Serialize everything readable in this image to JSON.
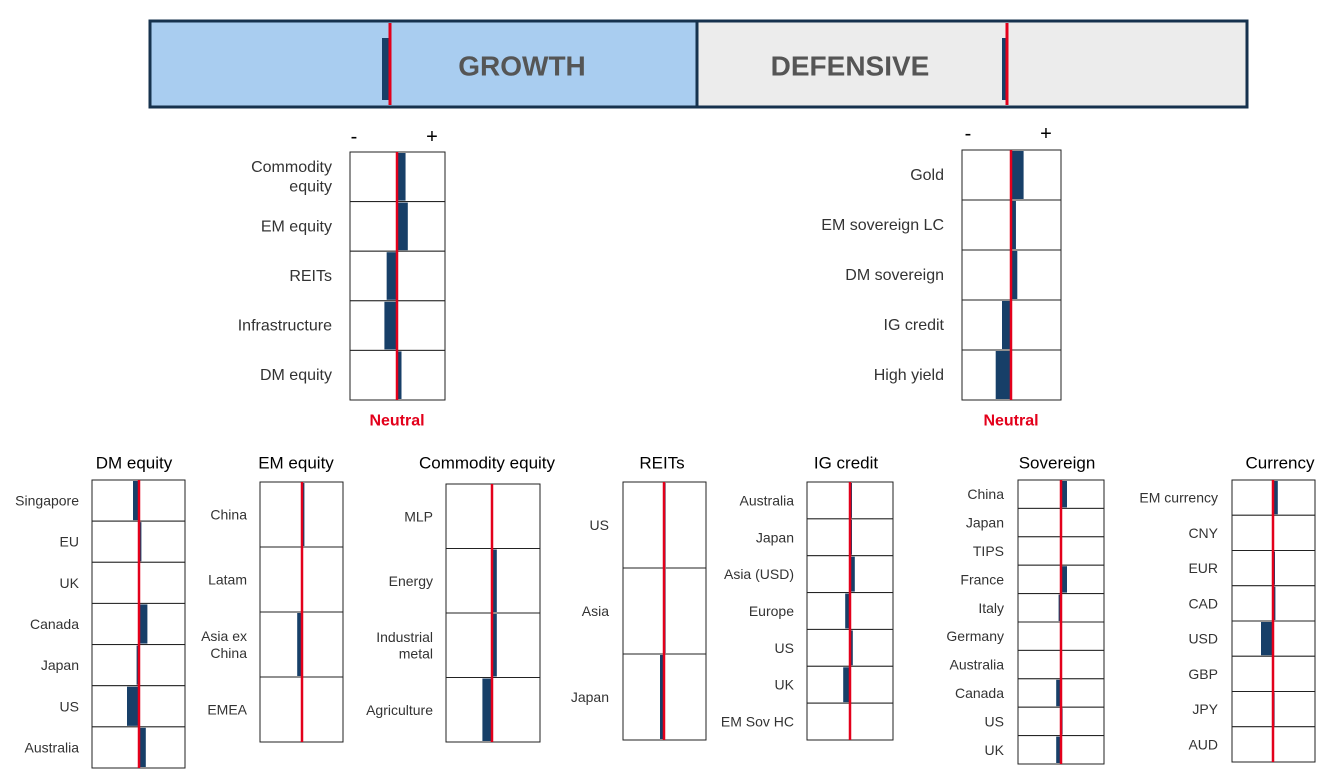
{
  "colors": {
    "growth_fill": "#a9cdf0",
    "defensive_fill": "#ececec",
    "border": "#16324e",
    "bar": "#173f68",
    "neutral_line": "#e3001b",
    "label_text": "#333333",
    "heading_text": "#000000",
    "neutral_text": "#e3001b",
    "header_text": "#555555"
  },
  "header": {
    "growth_label": "GROWTH",
    "defensive_label": "DEFENSIVE",
    "minus": "-",
    "plus": "+",
    "neutral_label": "Neutral"
  },
  "chart_data": [
    {
      "id": "regime",
      "type": "bar",
      "title": "",
      "categories": [
        "GROWTH",
        "DEFENSIVE"
      ],
      "values": [
        -0.08,
        -0.05
      ],
      "xlim": [
        -1,
        1
      ]
    },
    {
      "id": "growth",
      "type": "bar",
      "title": "",
      "categories": [
        "Commodity\nequity",
        "EM equity",
        "REITs",
        "Infrastructure",
        "DM equity"
      ],
      "values": [
        0.19,
        0.24,
        -0.23,
        -0.28,
        0.1
      ],
      "xlim": [
        -1,
        1
      ]
    },
    {
      "id": "defensive",
      "type": "bar",
      "title": "",
      "categories": [
        "Gold",
        "EM sovereign LC",
        "DM sovereign",
        "IG credit",
        "High yield"
      ],
      "values": [
        0.28,
        0.11,
        0.14,
        -0.2,
        -0.34
      ],
      "xlim": [
        -1,
        1
      ]
    },
    {
      "id": "dm_equity",
      "type": "bar",
      "title": "DM equity",
      "categories": [
        "Singapore",
        "EU",
        "UK",
        "Canada",
        "Japan",
        "US",
        "Australia"
      ],
      "values": [
        -0.15,
        0.06,
        0.0,
        0.21,
        -0.06,
        -0.3,
        0.17
      ],
      "xlim": [
        -1,
        1
      ]
    },
    {
      "id": "em_equity",
      "type": "bar",
      "title": "EM equity",
      "categories": [
        "China",
        "Latam",
        "Asia ex\nChina",
        "EMEA"
      ],
      "values": [
        0.06,
        0.0,
        -0.12,
        0.0
      ],
      "xlim": [
        -1,
        1
      ]
    },
    {
      "id": "commodity_equity",
      "type": "bar",
      "title": "Commodity equity",
      "categories": [
        "MLP",
        "Energy",
        "Industrial\nmetal",
        "Agriculture"
      ],
      "values": [
        0.0,
        0.12,
        0.12,
        -0.24
      ],
      "xlim": [
        -1,
        1
      ]
    },
    {
      "id": "reits",
      "type": "bar",
      "title": "REITs",
      "categories": [
        "US",
        "Asia",
        "Japan"
      ],
      "values": [
        0.04,
        0.04,
        -0.1
      ],
      "xlim": [
        -1,
        1
      ]
    },
    {
      "id": "ig_credit",
      "type": "bar",
      "title": "IG credit",
      "categories": [
        "Australia",
        "Japan",
        "Asia (USD)",
        "Europe",
        "US",
        "UK",
        "EM Sov HC"
      ],
      "values": [
        0.05,
        0.05,
        0.12,
        -0.12,
        0.07,
        -0.17,
        0.0
      ],
      "xlim": [
        -1,
        1
      ]
    },
    {
      "id": "sovereign",
      "type": "bar",
      "title": "Sovereign",
      "categories": [
        "China",
        "Japan",
        "TIPS",
        "France",
        "Italy",
        "Germany",
        "Australia",
        "Canada",
        "US",
        "UK"
      ],
      "values": [
        0.15,
        0.0,
        0.0,
        0.15,
        -0.06,
        0.0,
        0.0,
        -0.12,
        0.04,
        -0.12
      ],
      "xlim": [
        -1,
        1
      ]
    },
    {
      "id": "currency",
      "type": "bar",
      "title": "Currency",
      "categories": [
        "EM currency",
        "CNY",
        "EUR",
        "CAD",
        "USD",
        "GBP",
        "JPY",
        "AUD"
      ],
      "values": [
        0.12,
        0.0,
        0.05,
        0.06,
        -0.3,
        0.0,
        0.04,
        0.0
      ],
      "xlim": [
        -1,
        1
      ]
    }
  ]
}
